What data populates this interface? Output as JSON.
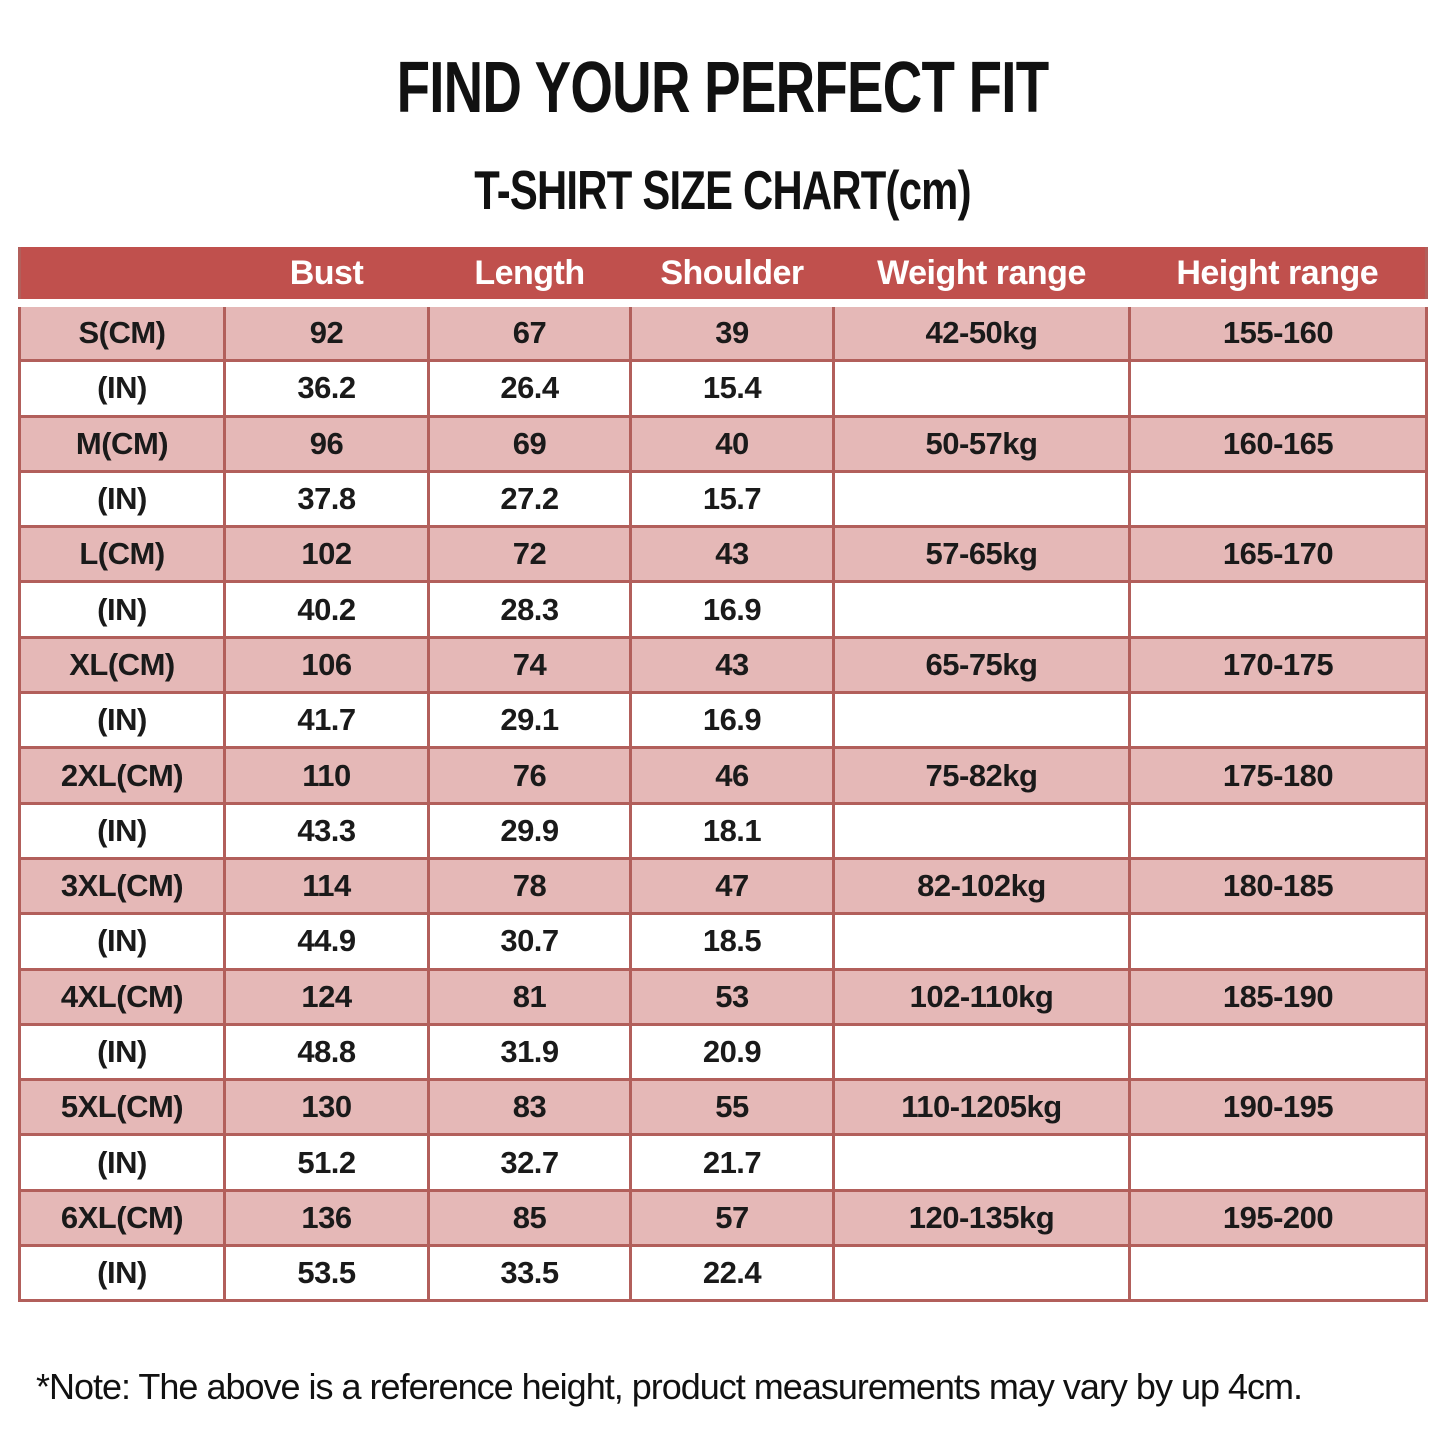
{
  "page": {
    "title": "FIND YOUR PERFECT FIT",
    "subtitle": "T-SHIRT SIZE CHART(cm)",
    "note": "*Note: The above is a reference height, product measurements may vary by up 4cm."
  },
  "colors": {
    "header_bg": "#c0504d",
    "header_text": "#ffffff",
    "row_pink": "#e5b8b7",
    "row_white": "#ffffff",
    "grid_border": "#b25f5b",
    "text": "#1a1a1a"
  },
  "chart_data": {
    "type": "table",
    "title": "T-SHIRT SIZE CHART(cm)",
    "headers": [
      "",
      "Bust",
      "Length",
      "Shoulder",
      "Weight range",
      "Height range"
    ],
    "rows": [
      {
        "shaded": true,
        "cells": [
          "S(CM)",
          "92",
          "67",
          "39",
          "42-50kg",
          "155-160"
        ]
      },
      {
        "shaded": false,
        "cells": [
          "(IN)",
          "36.2",
          "26.4",
          "15.4",
          "",
          ""
        ]
      },
      {
        "shaded": true,
        "cells": [
          "M(CM)",
          "96",
          "69",
          "40",
          "50-57kg",
          "160-165"
        ]
      },
      {
        "shaded": false,
        "cells": [
          "(IN)",
          "37.8",
          "27.2",
          "15.7",
          "",
          ""
        ]
      },
      {
        "shaded": true,
        "cells": [
          "L(CM)",
          "102",
          "72",
          "43",
          "57-65kg",
          "165-170"
        ]
      },
      {
        "shaded": false,
        "cells": [
          "(IN)",
          "40.2",
          "28.3",
          "16.9",
          "",
          ""
        ]
      },
      {
        "shaded": true,
        "cells": [
          "XL(CM)",
          "106",
          "74",
          "43",
          "65-75kg",
          "170-175"
        ]
      },
      {
        "shaded": false,
        "cells": [
          "(IN)",
          "41.7",
          "29.1",
          "16.9",
          "",
          ""
        ]
      },
      {
        "shaded": true,
        "cells": [
          "2XL(CM)",
          "110",
          "76",
          "46",
          "75-82kg",
          "175-180"
        ]
      },
      {
        "shaded": false,
        "cells": [
          "(IN)",
          "43.3",
          "29.9",
          "18.1",
          "",
          ""
        ]
      },
      {
        "shaded": true,
        "cells": [
          "3XL(CM)",
          "114",
          "78",
          "47",
          "82-102kg",
          "180-185"
        ]
      },
      {
        "shaded": false,
        "cells": [
          "(IN)",
          "44.9",
          "30.7",
          "18.5",
          "",
          ""
        ]
      },
      {
        "shaded": true,
        "cells": [
          "4XL(CM)",
          "124",
          "81",
          "53",
          "102-110kg",
          "185-190"
        ]
      },
      {
        "shaded": false,
        "cells": [
          "(IN)",
          "48.8",
          "31.9",
          "20.9",
          "",
          ""
        ]
      },
      {
        "shaded": true,
        "cells": [
          "5XL(CM)",
          "130",
          "83",
          "55",
          "110-1205kg",
          "190-195"
        ]
      },
      {
        "shaded": false,
        "cells": [
          "(IN)",
          "51.2",
          "32.7",
          "21.7",
          "",
          ""
        ]
      },
      {
        "shaded": true,
        "cells": [
          "6XL(CM)",
          "136",
          "85",
          "57",
          "120-135kg",
          "195-200"
        ]
      },
      {
        "shaded": false,
        "cells": [
          "(IN)",
          "53.5",
          "33.5",
          "22.4",
          "",
          ""
        ]
      }
    ]
  }
}
